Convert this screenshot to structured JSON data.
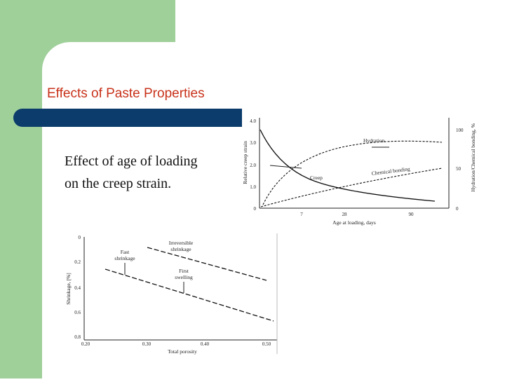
{
  "header": {
    "title": "Effects of Paste Properties"
  },
  "body": {
    "lines": [
      "Effect of age of loading",
      "on the creep strain."
    ]
  },
  "figures": [
    {
      "left_axis_label": "Relative creep strain",
      "right_axis_label": "Hydration/Chemical bonding, %",
      "x_axis_label": "Age at loading, days",
      "left_ticks": [
        "4.0",
        "3.0",
        "2.0",
        "1.0",
        "0"
      ],
      "right_ticks": [
        "100",
        "50",
        "0"
      ],
      "x_ticks": [
        "7",
        "28",
        "90"
      ],
      "annotations": [
        "Hydration",
        "Creep",
        "Chemical bonding"
      ]
    },
    {
      "y_axis_label": "Shrinkage, [%]",
      "x_axis_label": "Total porosity",
      "y_ticks": [
        "0",
        "0.2",
        "0.4",
        "0.6",
        "0.8"
      ],
      "x_ticks": [
        "0.20",
        "0.30",
        "0.40",
        "0.50"
      ],
      "annotations": [
        "Fast",
        "shrinkage",
        "Irreversible",
        "shrinkage",
        "First",
        "swelling"
      ]
    }
  ]
}
